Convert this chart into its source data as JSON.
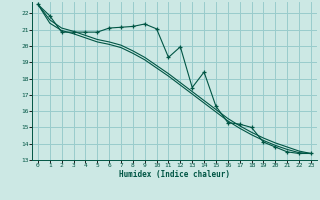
{
  "xlabel": "Humidex (Indice chaleur)",
  "bg_color": "#cce8e4",
  "grid_color": "#99cccc",
  "line_color": "#005544",
  "xlim": [
    -0.5,
    23.5
  ],
  "ylim": [
    13,
    22.7
  ],
  "xticks": [
    0,
    1,
    2,
    3,
    4,
    5,
    6,
    7,
    8,
    9,
    10,
    11,
    12,
    13,
    14,
    15,
    16,
    17,
    18,
    19,
    20,
    21,
    22,
    23
  ],
  "yticks": [
    13,
    14,
    15,
    16,
    17,
    18,
    19,
    20,
    21,
    22
  ],
  "line1_x": [
    0,
    1,
    2,
    3,
    4,
    5,
    6,
    7,
    8,
    9,
    10,
    11,
    12,
    13,
    14,
    15,
    16,
    17,
    18,
    19,
    20,
    21,
    22,
    23
  ],
  "line1_y": [
    22.55,
    21.85,
    20.85,
    20.85,
    20.85,
    20.85,
    21.1,
    21.15,
    21.2,
    21.35,
    21.05,
    19.3,
    19.95,
    17.45,
    18.4,
    16.3,
    15.3,
    15.2,
    15.0,
    14.1,
    13.8,
    13.5,
    13.4,
    13.4
  ],
  "line2_x": [
    0,
    1,
    2,
    3,
    4,
    5,
    6,
    7,
    8,
    9,
    10,
    11,
    12,
    13,
    14,
    15,
    16,
    17,
    18,
    19,
    20,
    21,
    22,
    23
  ],
  "line2_y": [
    22.55,
    21.6,
    21.1,
    20.9,
    20.65,
    20.4,
    20.25,
    20.05,
    19.7,
    19.3,
    18.8,
    18.3,
    17.75,
    17.2,
    16.65,
    16.1,
    15.55,
    15.1,
    14.7,
    14.35,
    14.05,
    13.8,
    13.55,
    13.4
  ],
  "line3_x": [
    0,
    1,
    2,
    3,
    4,
    5,
    6,
    7,
    8,
    9,
    10,
    11,
    12,
    13,
    14,
    15,
    16,
    17,
    18,
    19,
    20,
    21,
    22,
    23
  ],
  "line3_y": [
    22.55,
    21.4,
    20.95,
    20.75,
    20.5,
    20.25,
    20.1,
    19.9,
    19.55,
    19.15,
    18.65,
    18.15,
    17.6,
    17.05,
    16.5,
    15.95,
    15.4,
    14.95,
    14.55,
    14.2,
    13.9,
    13.65,
    13.45,
    13.4
  ]
}
